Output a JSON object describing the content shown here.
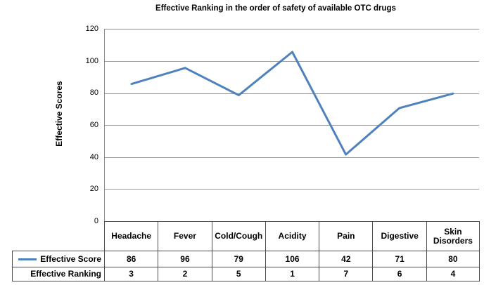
{
  "title": "Effective Ranking in the order of safety of available OTC drugs",
  "y_axis": {
    "label": "Effective Scores",
    "ticks": [
      "120",
      "100",
      "80",
      "60",
      "40",
      "20",
      "0"
    ]
  },
  "chart_data": {
    "type": "line",
    "title": "Effective Ranking in the order of safety of available OTC drugs",
    "xlabel": "",
    "ylabel": "Effective Scores",
    "categories": [
      "Headache",
      "Fever",
      "Cold/Cough",
      "Acidity",
      "Pain",
      "Digestive",
      "Skin Disorders"
    ],
    "series": [
      {
        "name": "Effective Score",
        "plotted": true,
        "values": [
          86,
          96,
          79,
          106,
          42,
          71,
          80
        ]
      },
      {
        "name": "Effective Ranking",
        "plotted": false,
        "values": [
          3,
          2,
          5,
          1,
          7,
          6,
          4
        ]
      }
    ],
    "ylim": [
      0,
      120
    ],
    "y_tick_step": 20,
    "grid": true,
    "legend_position": "data-table-left",
    "line_color": "#4F81BD"
  },
  "table": {
    "categories": [
      "Headache",
      "Fever",
      "Cold/Cough",
      "Acidity",
      "Pain",
      "Digestive",
      "Skin Disorders"
    ],
    "rows": [
      {
        "label": "Effective Score",
        "values": [
          "86",
          "96",
          "79",
          "106",
          "42",
          "71",
          "80"
        ]
      },
      {
        "label": "Effective Ranking",
        "values": [
          "3",
          "2",
          "5",
          "1",
          "7",
          "6",
          "4"
        ]
      }
    ]
  },
  "colors": {
    "line": "#4F81BD",
    "gridline": "#9a9a9a",
    "plot_border": "#8c8c8c",
    "table_border": "#4d4d4d"
  }
}
